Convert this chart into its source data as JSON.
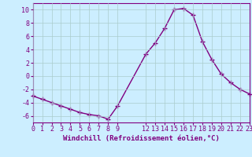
{
  "x": [
    0,
    1,
    2,
    3,
    4,
    5,
    6,
    7,
    8,
    9,
    12,
    13,
    14,
    15,
    16,
    17,
    18,
    19,
    20,
    21,
    22,
    23
  ],
  "y": [
    -3,
    -3.5,
    -4,
    -4.5,
    -5,
    -5.5,
    -5.8,
    -6,
    -6.5,
    -4.5,
    3.3,
    5,
    7.2,
    10,
    10.2,
    9.2,
    5.2,
    2.5,
    0.3,
    -1,
    -2,
    -2.7
  ],
  "line_color": "#800080",
  "marker": "+",
  "marker_size": 4,
  "marker_lw": 1.0,
  "bg_color": "#cceeff",
  "grid_color": "#aacccc",
  "xlabel": "Windchill (Refroidissement éolien,°C)",
  "xlim": [
    0,
    23
  ],
  "ylim": [
    -7,
    11
  ],
  "yticks": [
    -6,
    -4,
    -2,
    0,
    2,
    4,
    6,
    8,
    10
  ],
  "xticks": [
    0,
    1,
    2,
    3,
    4,
    5,
    6,
    7,
    8,
    9,
    12,
    13,
    14,
    15,
    16,
    17,
    18,
    19,
    20,
    21,
    22,
    23
  ],
  "xlabel_fontsize": 6.5,
  "tick_fontsize": 6,
  "label_color": "#800080",
  "line_width": 1.0
}
